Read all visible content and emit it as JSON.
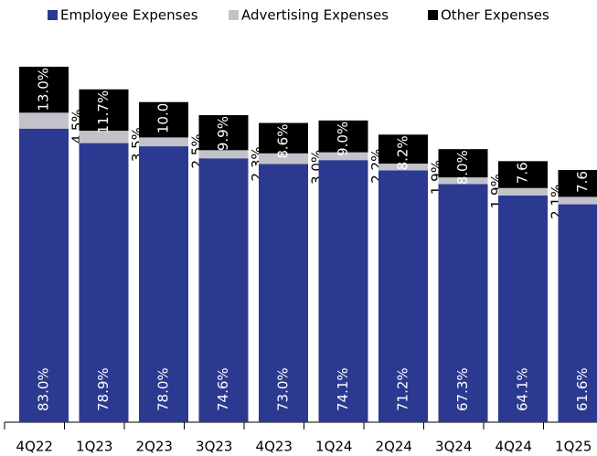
{
  "chart_data": {
    "type": "stacked_bar",
    "categories": [
      "4Q22",
      "1Q23",
      "2Q23",
      "3Q23",
      "4Q23",
      "1Q24",
      "2Q24",
      "3Q24",
      "4Q24",
      "1Q25"
    ],
    "series": [
      {
        "name": "Employee Expenses",
        "color": "#2b3990",
        "values": [
          83.0,
          78.9,
          78.0,
          74.6,
          73.0,
          74.1,
          71.2,
          67.3,
          64.1,
          61.6
        ],
        "value_labels": [
          "83.0%",
          "78.9%",
          "78.0%",
          "74.6%",
          "73.0%",
          "74.1%",
          "71.2%",
          "67.3%",
          "64.1%",
          "61.6%"
        ]
      },
      {
        "name": "Advertising Expenses",
        "color": "#c2c2ca",
        "values": [
          4.5,
          3.5,
          2.5,
          2.3,
          3.0,
          2.2,
          1.9,
          1.9,
          2.1,
          2.1
        ],
        "value_labels": [
          "4.5%",
          "3.5%",
          "2.5%",
          "2.3%",
          "3.0%",
          "2.2%",
          "1.9%",
          "1.9%",
          "2.1%",
          "2.1%"
        ]
      },
      {
        "name": "Other Expenses",
        "color": "#000000",
        "values": [
          13.0,
          11.7,
          10.0,
          9.9,
          8.6,
          9.0,
          8.2,
          8.0,
          7.6,
          7.6
        ],
        "value_labels": [
          "13.0%",
          "11.7%",
          "10.0",
          "9.9%",
          "8.6%",
          "9.0%",
          "8.2%",
          "8.0%",
          "7.6",
          "7.6"
        ]
      }
    ]
  }
}
